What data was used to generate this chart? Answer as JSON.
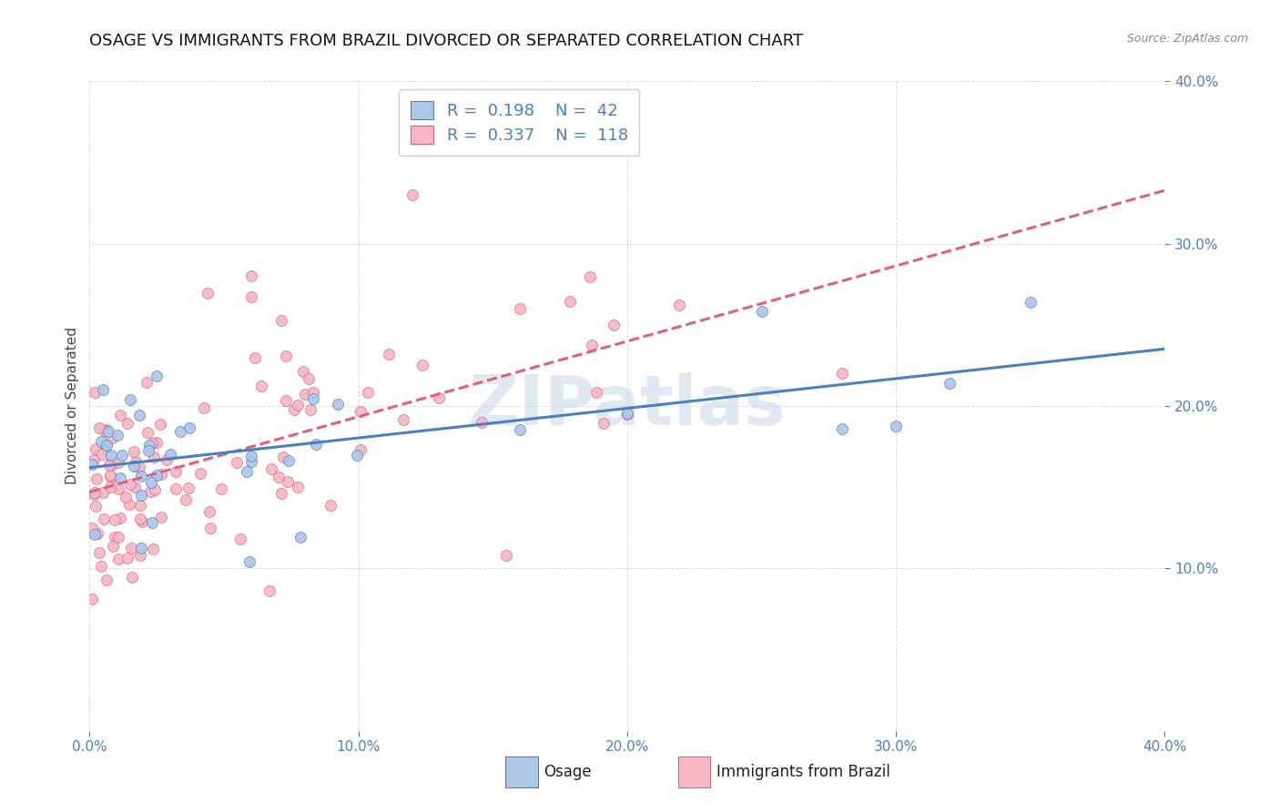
{
  "title": "OSAGE VS IMMIGRANTS FROM BRAZIL DIVORCED OR SEPARATED CORRELATION CHART",
  "source": "Source: ZipAtlas.com",
  "ylabel": "Divorced or Separated",
  "xlim": [
    0.0,
    0.4
  ],
  "ylim": [
    0.0,
    0.4
  ],
  "xticks": [
    0.0,
    0.1,
    0.2,
    0.3,
    0.4
  ],
  "yticks": [
    0.1,
    0.2,
    0.3,
    0.4
  ],
  "legend_labels": [
    "Osage",
    "Immigrants from Brazil"
  ],
  "osage_R": "0.198",
  "osage_N": "42",
  "brazil_R": "0.337",
  "brazil_N": "118",
  "osage_color": "#aec6e8",
  "brazil_color": "#f5b8c4",
  "osage_line_color": "#4a7fc1",
  "brazil_line_color": "#e06080",
  "background_color": "#ffffff",
  "grid_color": "#dddddd",
  "watermark": "ZIPatlas",
  "title_fontsize": 13,
  "label_fontsize": 11,
  "tick_fontsize": 11,
  "legend_fontsize": 13
}
